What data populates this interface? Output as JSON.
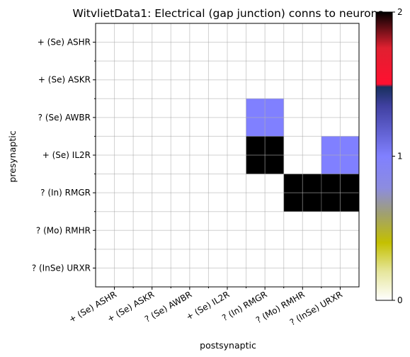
{
  "chart_data": {
    "type": "heatmap",
    "title": "WitvlietData1: Electrical (gap junction) conns to neurons",
    "xlabel": "postsynaptic",
    "ylabel": "presynaptic",
    "x_categories": [
      "+ (Se) ASHR",
      "+ (Se) ASKR",
      "? (Se) AWBR",
      "+ (Se) IL2R",
      "? (In) RMGR",
      "? (Mo) RMHR",
      "? (InSe) URXR"
    ],
    "y_categories": [
      "+ (Se) ASHR",
      "+ (Se) ASKR",
      "? (Se) AWBR",
      "+ (Se) IL2R",
      "? (In) RMGR",
      "? (Mo) RMHR",
      "? (InSe) URXR"
    ],
    "cells": [
      {
        "row": 2,
        "col": 4,
        "value": 1
      },
      {
        "row": 3,
        "col": 4,
        "value": 2
      },
      {
        "row": 3,
        "col": 6,
        "value": 1
      },
      {
        "row": 4,
        "col": 5,
        "value": 2
      },
      {
        "row": 4,
        "col": 6,
        "value": 2
      }
    ],
    "grid": true,
    "colorbar": {
      "min": 0,
      "max": 2,
      "ticks": [
        0,
        1,
        2
      ],
      "stops": [
        {
          "v": 0.0,
          "color": "#ffffff"
        },
        {
          "v": 0.2,
          "color": "#e6e69c"
        },
        {
          "v": 0.4,
          "color": "#c4c000"
        },
        {
          "v": 0.6,
          "color": "#a0a070"
        },
        {
          "v": 0.78,
          "color": "#8c8ce0"
        },
        {
          "v": 1.0,
          "color": "#8080ff"
        },
        {
          "v": 1.35,
          "color": "#4040a0"
        },
        {
          "v": 1.48,
          "color": "#18305e"
        },
        {
          "v": 1.5,
          "color": "#ff1030"
        },
        {
          "v": 1.75,
          "color": "#e02030"
        },
        {
          "v": 2.0,
          "color": "#000000"
        }
      ]
    }
  }
}
